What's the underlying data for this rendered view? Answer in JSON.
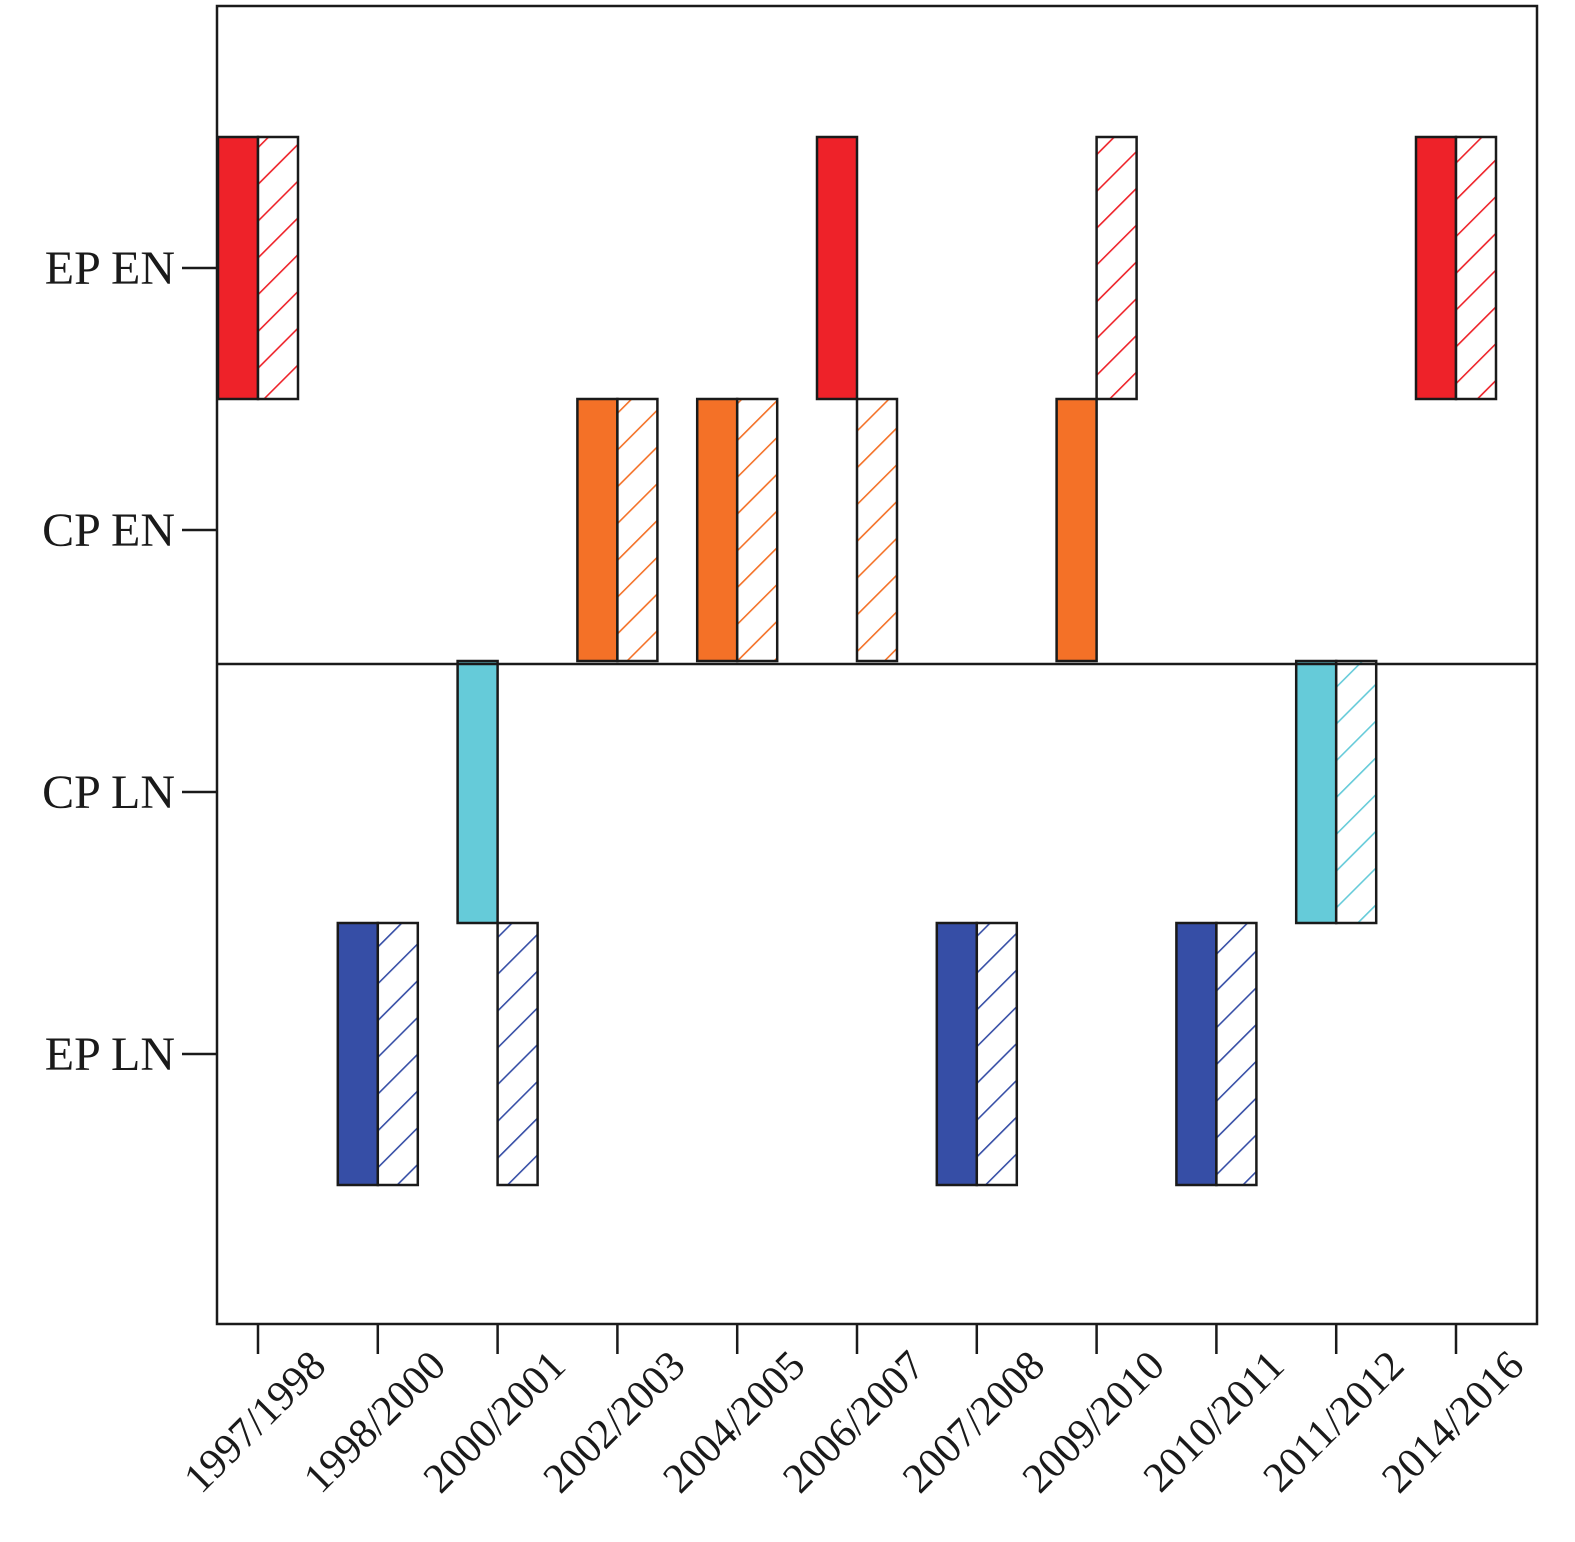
{
  "chart_data": {
    "type": "bar",
    "title": "",
    "xlabel": "",
    "ylabel": "",
    "categories": [
      "1997/1998",
      "1998/2000",
      "2000/2001",
      "2002/2003",
      "2004/2005",
      "2006/2007",
      "2007/2008",
      "2009/2010",
      "2010/2011",
      "2011/2012",
      "2014/2016"
    ],
    "ylevels": [
      "EP EN",
      "CP EN",
      "CP LN",
      "EP LN"
    ],
    "series": [
      {
        "name": "solid",
        "style": "solid",
        "values": [
          "EP EN",
          "EP LN",
          "CP LN",
          "CP EN",
          "CP EN",
          "EP EN",
          "EP LN",
          "CP EN",
          "EP LN",
          "CP LN",
          "EP EN"
        ]
      },
      {
        "name": "hatched",
        "style": "hatched",
        "values": [
          "EP EN",
          "EP LN",
          "EP LN",
          "CP EN",
          "CP EN",
          "CP EN",
          "EP LN",
          "EP EN",
          "EP LN",
          "CP LN",
          "EP EN"
        ]
      }
    ],
    "colors": {
      "EP EN": "#ee2229",
      "CP EN": "#f47127",
      "CP LN": "#65cbd9",
      "EP LN": "#364ea6"
    },
    "grid": false,
    "legend": "none"
  }
}
